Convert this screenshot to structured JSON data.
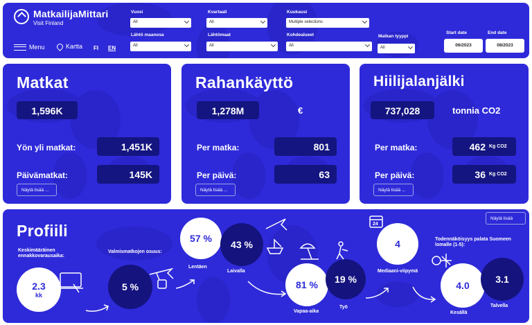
{
  "header": {
    "brand": "MatkailijaMittari",
    "brand_sub": "Visit Finland",
    "menu": "Menu",
    "map": "Kartta",
    "lang_fi": "FI",
    "lang_en": "EN",
    "filters": {
      "vuosi": {
        "label": "Vuosi",
        "value": "All"
      },
      "kvartaali": {
        "label": "Kvartaali",
        "value": "All"
      },
      "kuukausi": {
        "label": "Kuukausi",
        "value": "Multiple selections"
      },
      "lahtomaanosa": {
        "label": "Lähtö maanosa",
        "value": "All"
      },
      "lahtomaat": {
        "label": "Lähtömaat",
        "value": "All"
      },
      "kohdealueet": {
        "label": "Kohdealueet",
        "value": "All"
      },
      "matkan_tyyppi": {
        "label": "Matkan tyyppi",
        "value": "All"
      }
    },
    "start_date": {
      "label": "Start date",
      "value": "06/2023"
    },
    "end_date": {
      "label": "End date",
      "value": "08/2023"
    }
  },
  "matkat": {
    "title": "Matkat",
    "total": "1,596K",
    "overnight_label": "Yön yli matkat:",
    "overnight_value": "1,451K",
    "day_label": "Päivämatkat:",
    "day_value": "145K",
    "more": "Näytä lisää ..."
  },
  "raha": {
    "title": "Rahankäyttö",
    "total": "1,278M",
    "currency": "€",
    "per_trip_label": "Per matka:",
    "per_trip_value": "801",
    "per_day_label": "Per päivä:",
    "per_day_value": "63",
    "more": "Näytä lisää ..."
  },
  "hiili": {
    "title": "Hiilijalanjälki",
    "total": "737,028",
    "unit": "tonnia CO2",
    "per_trip_label": "Per matka:",
    "per_trip_value": "462",
    "per_trip_unit": "Kg CO2",
    "per_day_label": "Per päivä:",
    "per_day_value": "36",
    "per_day_unit": "Kg CO2",
    "more": "Näytä lisää ..."
  },
  "profiili": {
    "title": "Profiili",
    "more": "Näytä lisää",
    "booking_label": "Keskimääräinen ennakkovarausaika:",
    "booking_value": "2.3",
    "booking_unit": "kk",
    "package_label": "Valmismatkojen osuus:",
    "package_value": "5 %",
    "flight_value": "57 %",
    "flight_label": "Lentäen",
    "ship_value": "43 %",
    "ship_label": "Laivalla",
    "leisure_value": "81 %",
    "leisure_label": "Vapaa-aika",
    "work_value": "19 %",
    "work_label": "Työ",
    "median_value": "4",
    "median_label": "Mediaani-viipymä",
    "return_label": "Todennäköisyys palata Suomeen lomalle (1-5):",
    "summer_value": "4.0",
    "summer_label": "Kesällä",
    "winter_value": "3.1",
    "winter_label": "Talvella",
    "calendar_day": "24"
  },
  "colors": {
    "panel": "#2e2ad9",
    "pill": "#141580",
    "dark_circle": "#15137e"
  }
}
